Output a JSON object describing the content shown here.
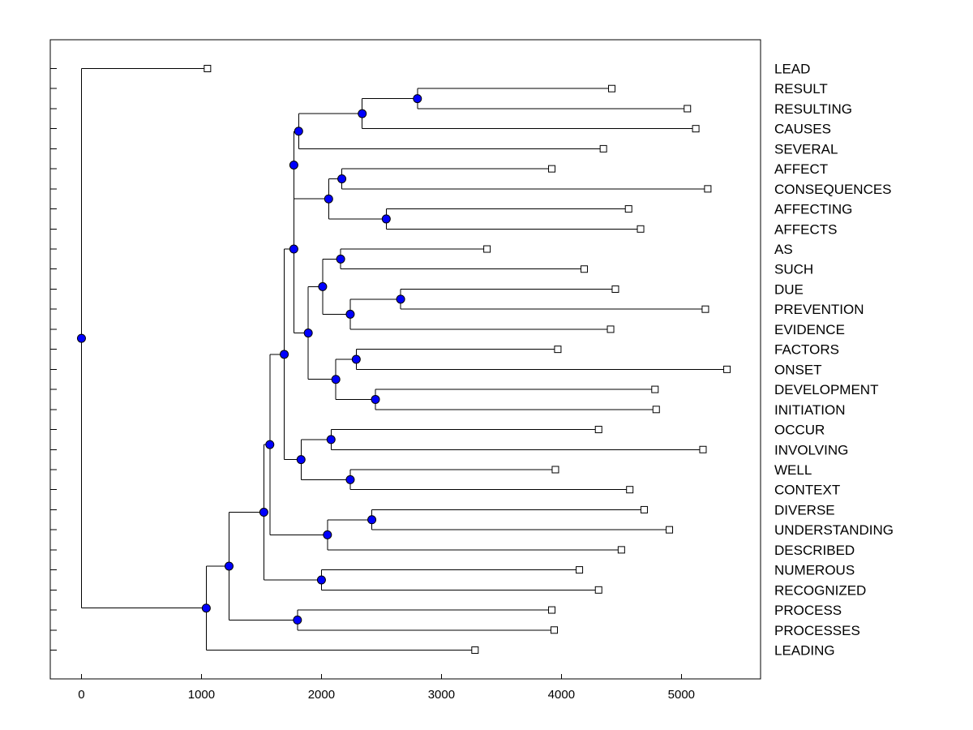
{
  "chart_data": {
    "type": "dendrogram",
    "title": "",
    "xlabel": "",
    "ylabel": "",
    "xlim": [
      -260,
      5660
    ],
    "xticks": [
      0,
      1000,
      2000,
      3000,
      4000,
      5000
    ],
    "grid": false,
    "leaves": [
      {
        "label": "LEAD",
        "x": 1050
      },
      {
        "label": "RESULT",
        "x": 4420
      },
      {
        "label": "RESULTING",
        "x": 5050
      },
      {
        "label": "CAUSES",
        "x": 5120
      },
      {
        "label": "SEVERAL",
        "x": 4350
      },
      {
        "label": "AFFECT",
        "x": 3920
      },
      {
        "label": "CONSEQUENCES",
        "x": 5220
      },
      {
        "label": "AFFECTING",
        "x": 4560
      },
      {
        "label": "AFFECTS",
        "x": 4660
      },
      {
        "label": "AS",
        "x": 3380
      },
      {
        "label": "SUCH",
        "x": 4190
      },
      {
        "label": "DUE",
        "x": 4450
      },
      {
        "label": "PREVENTION",
        "x": 5200
      },
      {
        "label": "EVIDENCE",
        "x": 4410
      },
      {
        "label": "FACTORS",
        "x": 3970
      },
      {
        "label": "ONSET",
        "x": 5380
      },
      {
        "label": "DEVELOPMENT",
        "x": 4780
      },
      {
        "label": "INITIATION",
        "x": 4790
      },
      {
        "label": "OCCUR",
        "x": 4310
      },
      {
        "label": "INVOLVING",
        "x": 5180
      },
      {
        "label": "WELL",
        "x": 3950
      },
      {
        "label": "CONTEXT",
        "x": 4570
      },
      {
        "label": "DIVERSE",
        "x": 4690
      },
      {
        "label": "UNDERSTANDING",
        "x": 4900
      },
      {
        "label": "DESCRIBED",
        "x": 4500
      },
      {
        "label": "NUMEROUS",
        "x": 4150
      },
      {
        "label": "RECOGNIZED",
        "x": 4310
      },
      {
        "label": "PROCESS",
        "x": 3920
      },
      {
        "label": "PROCESSES",
        "x": 3940
      },
      {
        "label": "LEADING",
        "x": 3280
      }
    ],
    "merges": [
      {
        "id": "n1",
        "x": 2800,
        "children": [
          "RESULT",
          "RESULTING"
        ]
      },
      {
        "id": "n2",
        "x": 2340,
        "children": [
          "n1",
          "CAUSES"
        ]
      },
      {
        "id": "n3",
        "x": 1810,
        "children": [
          "n2",
          "SEVERAL"
        ]
      },
      {
        "id": "n4",
        "x": 2170,
        "children": [
          "AFFECT",
          "CONSEQUENCES"
        ]
      },
      {
        "id": "n5",
        "x": 2540,
        "children": [
          "AFFECTING",
          "AFFECTS"
        ]
      },
      {
        "id": "n6",
        "x": 2060,
        "children": [
          "n4",
          "n5"
        ]
      },
      {
        "id": "n7",
        "x": 1770,
        "children": [
          "n3",
          "n6"
        ]
      },
      {
        "id": "n8",
        "x": 2160,
        "children": [
          "AS",
          "SUCH"
        ]
      },
      {
        "id": "n9",
        "x": 2660,
        "children": [
          "DUE",
          "PREVENTION"
        ]
      },
      {
        "id": "n10",
        "x": 2240,
        "children": [
          "n9",
          "EVIDENCE"
        ]
      },
      {
        "id": "n11",
        "x": 2010,
        "children": [
          "n8",
          "n10"
        ]
      },
      {
        "id": "n12",
        "x": 2290,
        "children": [
          "FACTORS",
          "ONSET"
        ]
      },
      {
        "id": "n13",
        "x": 2450,
        "children": [
          "DEVELOPMENT",
          "INITIATION"
        ]
      },
      {
        "id": "n14",
        "x": 2120,
        "children": [
          "n12",
          "n13"
        ]
      },
      {
        "id": "n15",
        "x": 1890,
        "children": [
          "n11",
          "n14"
        ]
      },
      {
        "id": "n16",
        "x": 1770,
        "children": [
          "n7",
          "n15"
        ]
      },
      {
        "id": "n17",
        "x": 2080,
        "children": [
          "OCCUR",
          "INVOLVING"
        ]
      },
      {
        "id": "n18",
        "x": 2240,
        "children": [
          "WELL",
          "CONTEXT"
        ]
      },
      {
        "id": "n19",
        "x": 1830,
        "children": [
          "n17",
          "n18"
        ]
      },
      {
        "id": "n20",
        "x": 1690,
        "children": [
          "n16",
          "n19"
        ]
      },
      {
        "id": "n21",
        "x": 2420,
        "children": [
          "DIVERSE",
          "UNDERSTANDING"
        ]
      },
      {
        "id": "n22",
        "x": 2050,
        "children": [
          "n21",
          "DESCRIBED"
        ]
      },
      {
        "id": "n23",
        "x": 1570,
        "children": [
          "n20",
          "n22"
        ]
      },
      {
        "id": "n24",
        "x": 2000,
        "children": [
          "NUMEROUS",
          "RECOGNIZED"
        ]
      },
      {
        "id": "n25",
        "x": 1520,
        "children": [
          "n23",
          "n24"
        ]
      },
      {
        "id": "n26",
        "x": 1800,
        "children": [
          "PROCESS",
          "PROCESSES"
        ]
      },
      {
        "id": "n27",
        "x": 1230,
        "children": [
          "n25",
          "n26"
        ]
      },
      {
        "id": "n28",
        "x": 1040,
        "children": [
          "n27",
          "LEADING"
        ]
      },
      {
        "id": "root",
        "x": 0,
        "children": [
          "LEAD",
          "n28"
        ]
      }
    ],
    "colors": {
      "node_fill": "#0000ff",
      "leaf_marker_fill": "#ffffff",
      "line": "#000000"
    }
  }
}
